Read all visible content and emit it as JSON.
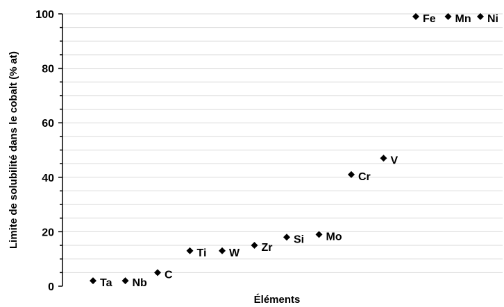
{
  "chart_data": {
    "type": "scatter",
    "title": "",
    "xlabel": "Éléments",
    "ylabel": "Limite de solubilité dans le cobalt (% at)",
    "ylim": [
      0,
      100
    ],
    "yticks": [
      0,
      20,
      40,
      60,
      80,
      100
    ],
    "grid": true,
    "legend": "none",
    "marker": "diamond",
    "color": "#000000",
    "points": [
      {
        "label": "Ta",
        "x": 1,
        "y": 2
      },
      {
        "label": "Nb",
        "x": 2,
        "y": 2
      },
      {
        "label": "C",
        "x": 3,
        "y": 5
      },
      {
        "label": "Ti",
        "x": 4,
        "y": 13
      },
      {
        "label": "W",
        "x": 5,
        "y": 13
      },
      {
        "label": "Zr",
        "x": 6,
        "y": 15
      },
      {
        "label": "Si",
        "x": 7,
        "y": 18
      },
      {
        "label": "Mo",
        "x": 8,
        "y": 19
      },
      {
        "label": "Cr",
        "x": 9,
        "y": 41
      },
      {
        "label": "V",
        "x": 10,
        "y": 47
      },
      {
        "label": "Fe",
        "x": 11,
        "y": 99
      },
      {
        "label": "Mn",
        "x": 12,
        "y": 99
      },
      {
        "label": "Ni",
        "x": 13,
        "y": 99
      }
    ]
  }
}
